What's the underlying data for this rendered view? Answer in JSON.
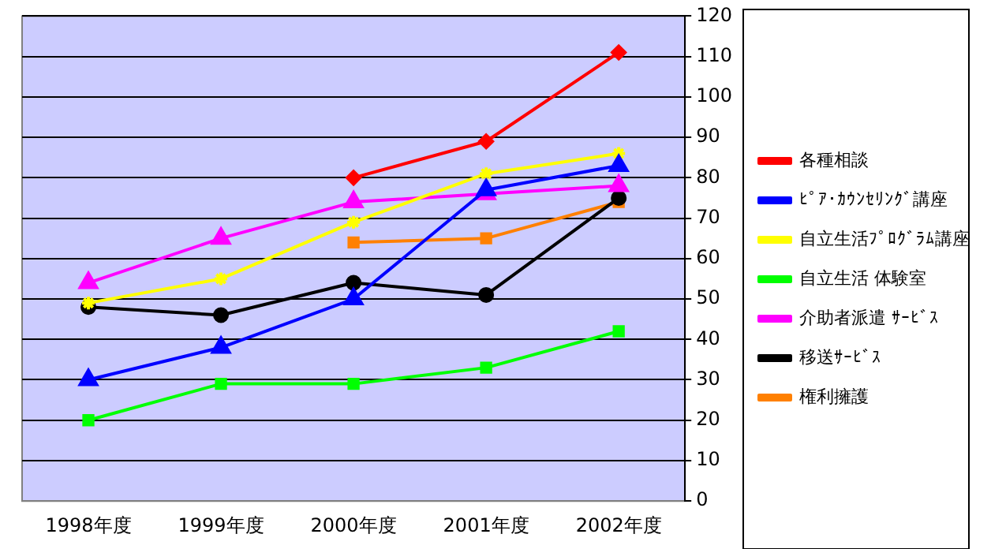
{
  "chart_data": {
    "type": "line",
    "categories": [
      "1998年度",
      "1999年度",
      "2000年度",
      "2001年度",
      "2002年度"
    ],
    "series": [
      {
        "name": "各種相談",
        "color": "#ff0000",
        "marker": "diamond",
        "values": [
          null,
          null,
          80,
          89,
          111
        ]
      },
      {
        "name": "ﾋﾟｱ･ｶｳﾝｾﾘﾝｸﾞ講座",
        "color": "#0000ff",
        "marker": "triangle",
        "values": [
          30,
          38,
          50,
          77,
          83
        ]
      },
      {
        "name": "自立生活ﾌﾟﾛｸﾞﾗﾑ講座",
        "color": "#ffff00",
        "marker": "cross",
        "values": [
          49,
          55,
          69,
          81,
          86
        ]
      },
      {
        "name": "自立生活 体験室",
        "color": "#00ff00",
        "marker": "square",
        "values": [
          20,
          29,
          29,
          33,
          42
        ]
      },
      {
        "name": "介助者派遣 ｻｰﾋﾞｽ",
        "color": "#ff00ff",
        "marker": "triangle",
        "values": [
          54,
          65,
          74,
          76,
          78
        ]
      },
      {
        "name": "移送ｻｰﾋﾞｽ",
        "color": "#000000",
        "marker": "circle",
        "values": [
          48,
          46,
          54,
          51,
          75
        ]
      },
      {
        "name": "権利擁護",
        "color": "#ff8000",
        "marker": "square",
        "values": [
          null,
          null,
          64,
          65,
          74
        ]
      }
    ],
    "ylim": [
      0,
      120
    ],
    "yticks": [
      0,
      10,
      20,
      30,
      40,
      50,
      60,
      70,
      80,
      90,
      100,
      110,
      120
    ],
    "grid": "y",
    "legend": "right",
    "line_style": "solid"
  }
}
